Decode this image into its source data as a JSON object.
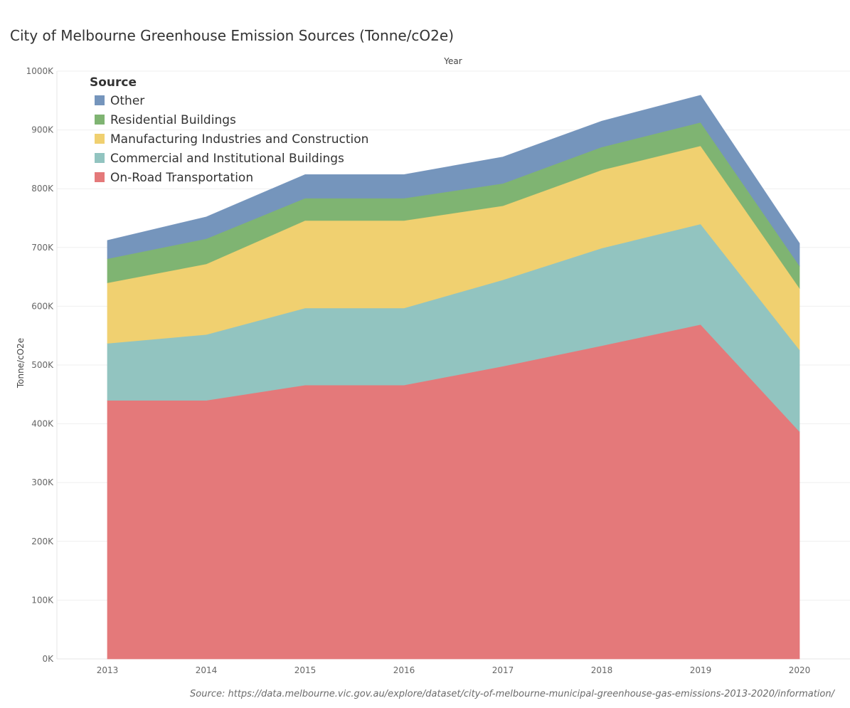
{
  "title": "City of Melbourne Greenhouse Emission Sources (Tonne/cO2e)",
  "source_note": "Source: https://data.melbourne.vic.gov.au/explore/dataset/city-of-melbourne-municipal-greenhouse-gas-emissions-2013-2020/information/",
  "chart_data": {
    "type": "area",
    "stacked": true,
    "title": "City of Melbourne Greenhouse Emission Sources (Tonne/cO2e)",
    "top_axis_label": "Year",
    "ylabel": "Tonne/cO2e",
    "x": [
      "2013",
      "2014",
      "2015",
      "2016",
      "2017",
      "2018",
      "2019",
      "2020"
    ],
    "y_ticks": [
      "0K",
      "100K",
      "200K",
      "300K",
      "400K",
      "500K",
      "600K",
      "700K",
      "800K",
      "900K",
      "1000K"
    ],
    "ylim": [
      0,
      1000000
    ],
    "grid": true,
    "legend": {
      "title": "Source",
      "placement": "top-left"
    },
    "series": [
      {
        "name": "On-Road Transportation",
        "color": "#e4797a",
        "values": [
          440000,
          440000,
          466000,
          466000,
          498000,
          533000,
          569000,
          387000
        ]
      },
      {
        "name": "Commercial and Institutional Buildings",
        "color": "#92c4c0",
        "values": [
          97000,
          112000,
          131000,
          131000,
          147000,
          166000,
          171000,
          139000
        ]
      },
      {
        "name": "Manufacturing Industries and Construction",
        "color": "#f0d070",
        "values": [
          103000,
          120000,
          149000,
          149000,
          126000,
          133000,
          133000,
          105000
        ]
      },
      {
        "name": "Residential Buildings",
        "color": "#7fb472",
        "values": [
          41000,
          43000,
          38000,
          38000,
          38000,
          39000,
          40000,
          38000
        ]
      },
      {
        "name": "Other",
        "color": "#7595bc",
        "values": [
          31000,
          37000,
          40000,
          40000,
          45000,
          44000,
          46000,
          38000
        ]
      }
    ],
    "legend_order": [
      "Other",
      "Residential Buildings",
      "Manufacturing Industries and Construction",
      "Commercial and Institutional Buildings",
      "On-Road Transportation"
    ]
  }
}
